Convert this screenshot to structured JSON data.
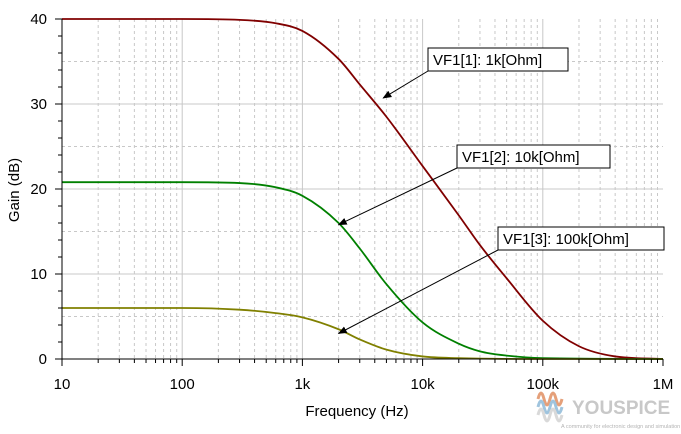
{
  "chart_data": {
    "type": "line",
    "xscale": "log",
    "xlim": [
      10,
      1000000
    ],
    "ylim": [
      0,
      40
    ],
    "xlabel": "Frequency (Hz)",
    "ylabel": "Gain (dB)",
    "xticks": [
      "10",
      "100",
      "1k",
      "10k",
      "100k",
      "1M"
    ],
    "yticks": [
      "0",
      "10",
      "20",
      "30",
      "40"
    ],
    "grid": true,
    "series": [
      {
        "name": "VF1[1]: 1k[Ohm]",
        "color": "#800000",
        "x": [
          10,
          100,
          300,
          600,
          1000,
          2000,
          3000,
          5000,
          10000,
          20000,
          30000,
          50000,
          100000,
          200000,
          400000,
          1000000
        ],
        "y": [
          40,
          40,
          39.9,
          39.5,
          38.6,
          35.3,
          32.3,
          28.5,
          22.7,
          16.9,
          13.4,
          9.5,
          4.5,
          1.5,
          0.3,
          0
        ]
      },
      {
        "name": "VF1[2]: 10k[Ohm]",
        "color": "#008000",
        "x": [
          10,
          100,
          300,
          600,
          1000,
          2000,
          3000,
          5000,
          10000,
          20000,
          30000,
          50000,
          100000,
          1000000
        ],
        "y": [
          20.8,
          20.8,
          20.7,
          20.2,
          19.2,
          16.0,
          13.0,
          8.8,
          4.3,
          1.8,
          0.9,
          0.4,
          0.1,
          0
        ]
      },
      {
        "name": "VF1[3]: 100k[Ohm]",
        "color": "#808000",
        "x": [
          10,
          100,
          300,
          600,
          1000,
          2000,
          3000,
          5000,
          10000,
          20000,
          100000,
          1000000
        ],
        "y": [
          6.0,
          6.0,
          5.8,
          5.4,
          4.9,
          3.5,
          2.3,
          1.1,
          0.3,
          0.1,
          0,
          0
        ]
      }
    ],
    "annotations": [
      {
        "text": "VF1[1]: 1k[Ohm]",
        "target": [
          4700,
          30.7
        ]
      },
      {
        "text": "VF1[2]: 10k[Ohm]",
        "target": [
          2000,
          15.8
        ]
      },
      {
        "text": "VF1[3]: 100k[Ohm]",
        "target": [
          2000,
          3.0
        ]
      }
    ]
  },
  "watermark": {
    "brand": "YOUSPICE",
    "tagline": "A community for electronic design and simulation"
  }
}
